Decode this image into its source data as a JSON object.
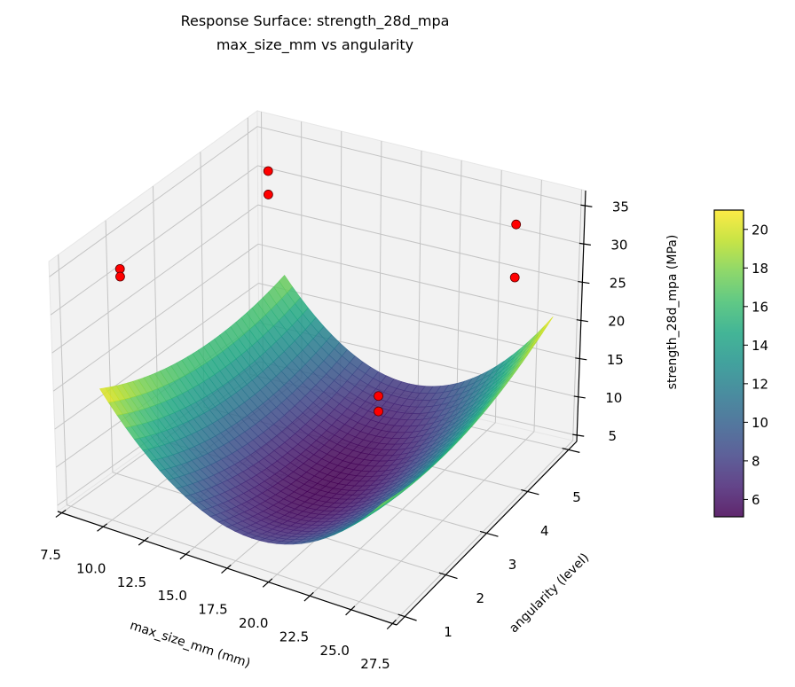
{
  "chart_data": {
    "type": "surface3d",
    "title_lines": [
      "Response Surface: strength_28d_mpa",
      "max_size_mm vs angularity"
    ],
    "xlabel": "max_size_mm (mm)",
    "ylabel": "angularity (level)",
    "zlabel": "strength_28d_mpa (MPa)",
    "xlim": [
      7.25,
      27.75
    ],
    "ylim": [
      0.8,
      5.2
    ],
    "zlim": [
      4.2,
      37
    ],
    "xticks": [
      "7.5",
      "10.0",
      "12.5",
      "15.0",
      "17.5",
      "20.0",
      "22.5",
      "25.0",
      "27.5"
    ],
    "yticks": [
      "1",
      "2",
      "3",
      "4",
      "5"
    ],
    "zticks": [
      "5",
      "10",
      "15",
      "20",
      "25",
      "30",
      "35"
    ],
    "grid": true,
    "view": {
      "elevation": 30,
      "azimuth": -60
    },
    "surface": {
      "colormap": "viridis",
      "alpha": 0.85,
      "x": [
        9.5,
        13.75,
        18,
        22.25,
        26.5
      ],
      "y": [
        1,
        2,
        3,
        4,
        5
      ],
      "z": [
        [
          21.0,
          11.54,
          7.9,
          10.04,
          17.96
        ],
        [
          18.11,
          9.06,
          5.8,
          8.32,
          16.61
        ],
        [
          16.66,
          7.99,
          5.1,
          7.99,
          16.66
        ],
        [
          16.61,
          8.32,
          5.8,
          9.06,
          18.11
        ],
        [
          17.96,
          10.04,
          7.9,
          11.54,
          20.96
        ]
      ]
    },
    "scatter": {
      "color": "#ff0000",
      "edge_color": "#5a0000",
      "points": [
        {
          "x": 9.5,
          "y": 1.5,
          "z": 34.4
        },
        {
          "x": 9.5,
          "y": 1.5,
          "z": 33.4
        },
        {
          "x": 8.5,
          "y": 5.0,
          "z": 30.8
        },
        {
          "x": 8.5,
          "y": 5.0,
          "z": 27.8
        },
        {
          "x": 24.3,
          "y": 4.9,
          "z": 32.4
        },
        {
          "x": 24.3,
          "y": 4.9,
          "z": 25.5
        },
        {
          "x": 21.0,
          "y": 3.0,
          "z": 18.0
        },
        {
          "x": 21.0,
          "y": 3.0,
          "z": 16.0
        }
      ]
    },
    "colorbar": {
      "vmin": 5.1,
      "vmax": 21.0,
      "ticks": [
        "6",
        "8",
        "10",
        "12",
        "14",
        "16",
        "18",
        "20"
      ]
    },
    "colors": {
      "pane": "#f2f2f2",
      "grid": "#c4c4c4",
      "axis": "#000000"
    }
  }
}
